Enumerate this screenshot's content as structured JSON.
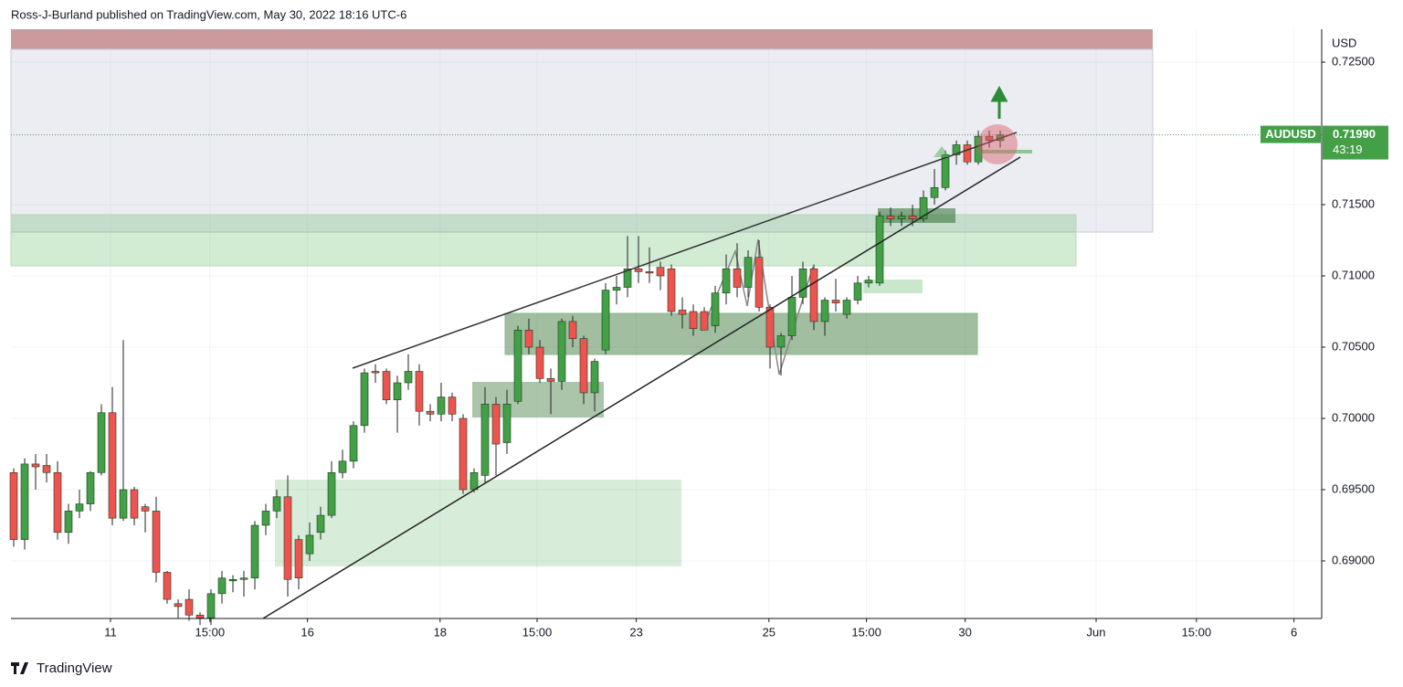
{
  "header": "Ross-J-Burland published on TradingView.com, May 30, 2022 18:16 UTC-6",
  "footer": "TradingView",
  "chart_data": {
    "type": "candlestick",
    "currency": "USD",
    "series": [
      {
        "name": "AUDUSD",
        "up_color": "#43a047",
        "down_color": "#ef5350",
        "open": [
          0.6962,
          0.6915,
          0.6968,
          0.6967,
          0.6962,
          0.692,
          0.6935,
          0.694,
          0.6962,
          0.7004,
          0.693,
          0.695,
          0.6938,
          0.6935,
          0.6892,
          0.687,
          0.6873,
          0.6862,
          0.686,
          0.6877,
          0.6886,
          0.6887,
          0.6888,
          0.6925,
          0.6935,
          0.6945,
          0.6915,
          0.6905,
          0.692,
          0.6932,
          0.6962,
          0.697,
          0.6995,
          0.7033,
          0.7033,
          0.7013,
          0.7025,
          0.7033,
          0.7005,
          0.7003,
          0.7015,
          0.7,
          0.695,
          0.696,
          0.701,
          0.6983,
          0.7012,
          0.7062,
          0.705,
          0.7028,
          0.7026,
          0.7068,
          0.7056,
          0.7018,
          0.7048,
          0.709,
          0.7092,
          0.7105,
          0.7103,
          0.7106,
          0.7105,
          0.7076,
          0.7075,
          0.7075,
          0.7065,
          0.7088,
          0.7105,
          0.7092,
          0.7113,
          0.7078,
          0.705,
          0.7058,
          0.7085,
          0.7105,
          0.7068,
          0.7083,
          0.7073,
          0.7083,
          0.7095,
          0.7095,
          0.7142,
          0.714,
          0.7142,
          0.714,
          0.7155,
          0.7162,
          0.7185,
          0.7192,
          0.718,
          0.7198,
          0.7195
        ],
        "high": [
          0.6965,
          0.6972,
          0.6975,
          0.6975,
          0.697,
          0.694,
          0.695,
          0.6963,
          0.701,
          0.7022,
          0.7055,
          0.6952,
          0.694,
          0.6945,
          0.6893,
          0.6873,
          0.688,
          0.6864,
          0.688,
          0.6893,
          0.689,
          0.6893,
          0.6928,
          0.694,
          0.695,
          0.696,
          0.6918,
          0.6927,
          0.6938,
          0.697,
          0.6978,
          0.6998,
          0.7035,
          0.7038,
          0.7035,
          0.703,
          0.7045,
          0.7038,
          0.701,
          0.7025,
          0.7018,
          0.7003,
          0.6965,
          0.7022,
          0.7015,
          0.702,
          0.7065,
          0.707,
          0.7055,
          0.7035,
          0.707,
          0.7072,
          0.7058,
          0.7042,
          0.7095,
          0.71,
          0.7128,
          0.7128,
          0.712,
          0.711,
          0.7108,
          0.7085,
          0.708,
          0.7078,
          0.7093,
          0.7115,
          0.7123,
          0.7118,
          0.7125,
          0.708,
          0.706,
          0.71,
          0.711,
          0.7108,
          0.7085,
          0.7098,
          0.7085,
          0.71,
          0.71,
          0.7145,
          0.7148,
          0.7145,
          0.715,
          0.716,
          0.7175,
          0.7188,
          0.7195,
          0.7195,
          0.7202,
          0.7202,
          0.7202
        ],
        "low": [
          0.691,
          0.6908,
          0.695,
          0.6955,
          0.6915,
          0.6912,
          0.693,
          0.6935,
          0.696,
          0.6925,
          0.6928,
          0.6925,
          0.692,
          0.6885,
          0.687,
          0.686,
          0.6858,
          0.6855,
          0.6855,
          0.687,
          0.6878,
          0.6875,
          0.688,
          0.6918,
          0.693,
          0.6875,
          0.688,
          0.69,
          0.6915,
          0.693,
          0.6958,
          0.6965,
          0.699,
          0.7025,
          0.701,
          0.699,
          0.702,
          0.6995,
          0.6998,
          0.6998,
          0.6998,
          0.6947,
          0.6948,
          0.6955,
          0.696,
          0.6975,
          0.701,
          0.7045,
          0.7025,
          0.7003,
          0.702,
          0.705,
          0.701,
          0.7005,
          0.7045,
          0.708,
          0.7085,
          0.7095,
          0.7095,
          0.709,
          0.7072,
          0.7063,
          0.7058,
          0.7062,
          0.706,
          0.708,
          0.7085,
          0.7085,
          0.7075,
          0.7035,
          0.703,
          0.7055,
          0.708,
          0.7062,
          0.7058,
          0.7075,
          0.707,
          0.708,
          0.7092,
          0.7093,
          0.7135,
          0.7135,
          0.7135,
          0.7138,
          0.715,
          0.716,
          0.7178,
          0.7178,
          0.7178,
          0.719,
          0.719
        ],
        "close": [
          0.6915,
          0.6968,
          0.6966,
          0.6962,
          0.692,
          0.6935,
          0.694,
          0.6962,
          0.7004,
          0.693,
          0.695,
          0.693,
          0.6935,
          0.6892,
          0.6873,
          0.6868,
          0.6862,
          0.686,
          0.6877,
          0.6888,
          0.6887,
          0.6888,
          0.6925,
          0.6935,
          0.6945,
          0.6887,
          0.6888,
          0.6918,
          0.6932,
          0.6962,
          0.697,
          0.6995,
          0.7032,
          0.7032,
          0.7013,
          0.7025,
          0.7033,
          0.7005,
          0.7003,
          0.7015,
          0.7003,
          0.695,
          0.6962,
          0.701,
          0.6982,
          0.701,
          0.7062,
          0.705,
          0.7028,
          0.7026,
          0.7068,
          0.7056,
          0.7018,
          0.704,
          0.709,
          0.7092,
          0.7105,
          0.7103,
          0.7102,
          0.71,
          0.7075,
          0.7073,
          0.7063,
          0.7062,
          0.7088,
          0.7105,
          0.7092,
          0.7113,
          0.7078,
          0.705,
          0.7058,
          0.7085,
          0.7105,
          0.7068,
          0.7083,
          0.7081,
          0.7083,
          0.7095,
          0.7097,
          0.7142,
          0.714,
          0.7142,
          0.714,
          0.7155,
          0.7162,
          0.7185,
          0.7192,
          0.718,
          0.7198,
          0.7195,
          0.7199
        ]
      }
    ],
    "last_price": {
      "value": 0.7199,
      "label": "0.71990"
    },
    "countdown": "43:19",
    "ylim": [
      0.68596,
      0.72731
    ],
    "yticks": [
      {
        "value": 0.725,
        "label": "0.72500"
      },
      {
        "value": 0.715,
        "label": "0.71500"
      },
      {
        "value": 0.71,
        "label": "0.71000"
      },
      {
        "value": 0.705,
        "label": "0.70500"
      },
      {
        "value": 0.7,
        "label": "0.70000"
      },
      {
        "value": 0.695,
        "label": "0.69500"
      },
      {
        "value": 0.69,
        "label": "0.69000"
      }
    ],
    "xlim": [
      -0.25,
      119.33
    ],
    "xticks": [
      {
        "value": 8.83,
        "label": "11"
      },
      {
        "value": 17.9,
        "label": "15:00"
      },
      {
        "value": 26.8,
        "label": "16"
      },
      {
        "value": 38.9,
        "label": "18"
      },
      {
        "value": 47.75,
        "label": "15:00"
      },
      {
        "value": 56.8,
        "label": "23"
      },
      {
        "value": 68.9,
        "label": "25"
      },
      {
        "value": 77.8,
        "label": "15:00"
      },
      {
        "value": 86.8,
        "label": "30"
      },
      {
        "value": 98.75,
        "label": "Jun"
      },
      {
        "value": 107.9,
        "label": "15:00"
      },
      {
        "value": 116.8,
        "label": "6"
      }
    ],
    "grid": true
  }
}
